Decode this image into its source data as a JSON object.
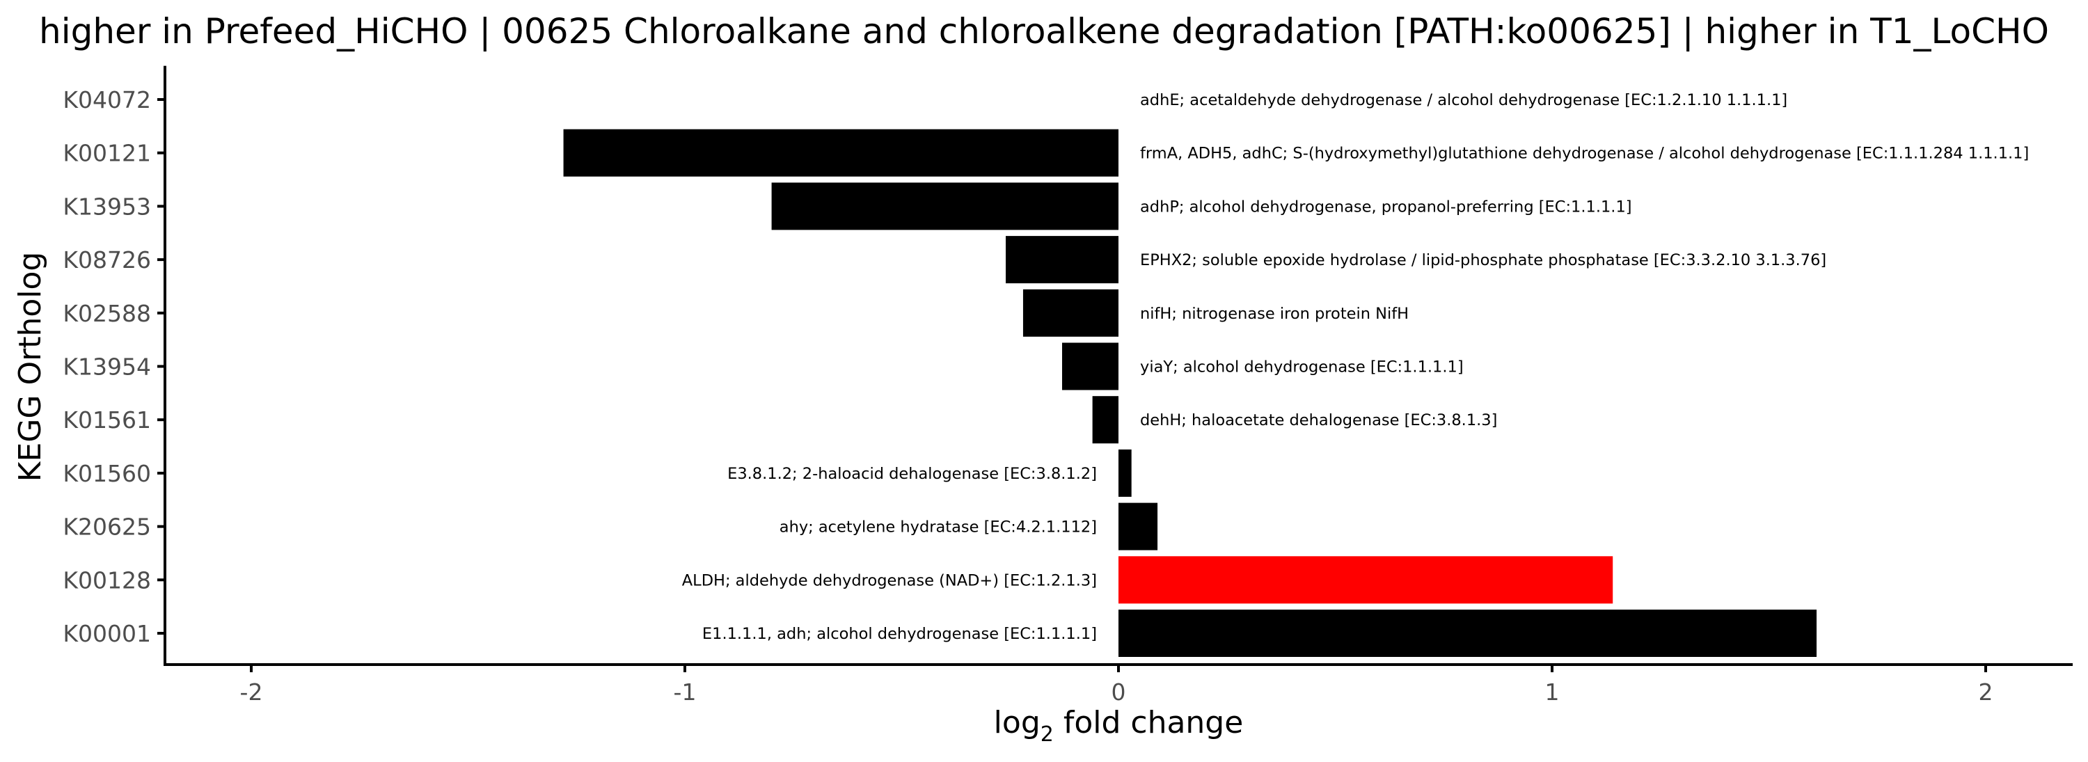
{
  "chart_data": {
    "type": "bar",
    "orientation": "horizontal",
    "title": "higher in Prefeed_HiCHO | 00625 Chloroalkane and chloroalkene degradation [PATH:ko00625] | higher in T1_LoCHO",
    "xlabel_main": "log",
    "xlabel_sub": "2",
    "xlabel_rest": " fold change",
    "ylabel": "KEGG Ortholog",
    "xlim": [
      -2.2,
      2.2
    ],
    "xticks": [
      -2,
      -1,
      0,
      1,
      2
    ],
    "grid": false,
    "legend": "none",
    "categories": [
      "K04072",
      "K00121",
      "K13953",
      "K08726",
      "K02588",
      "K13954",
      "K01561",
      "K01560",
      "K20625",
      "K00128",
      "K00001"
    ],
    "values": [
      0.0,
      -1.28,
      -0.8,
      -0.26,
      -0.22,
      -0.13,
      -0.06,
      0.03,
      0.09,
      1.14,
      1.61
    ],
    "annotations": [
      "adhE; acetaldehyde dehydrogenase / alcohol dehydrogenase [EC:1.2.1.10 1.1.1.1]",
      "frmA, ADH5, adhC; S-(hydroxymethyl)glutathione dehydrogenase / alcohol dehydrogenase [EC:1.1.1.284 1.1.1.1]",
      "adhP; alcohol dehydrogenase, propanol-preferring [EC:1.1.1.1]",
      "EPHX2; soluble epoxide hydrolase / lipid-phosphate phosphatase [EC:3.3.2.10 3.1.3.76]",
      "nifH; nitrogenase iron protein NifH",
      "yiaY; alcohol dehydrogenase [EC:1.1.1.1]",
      "dehH; haloacetate dehalogenase [EC:3.8.1.3]",
      "E3.8.1.2; 2-haloacid dehalogenase [EC:3.8.1.2]",
      "ahy; acetylene hydratase [EC:4.2.1.112]",
      "ALDH; aldehyde dehydrogenase (NAD+) [EC:1.2.1.3]",
      "E1.1.1.1, adh; alcohol dehydrogenase [EC:1.1.1.1]"
    ],
    "highlight_category": "K00128",
    "colors": {
      "bar": "#000000",
      "highlight": "#ff0000",
      "axis": "#000000",
      "tick_label": "#4d4d4d"
    }
  }
}
